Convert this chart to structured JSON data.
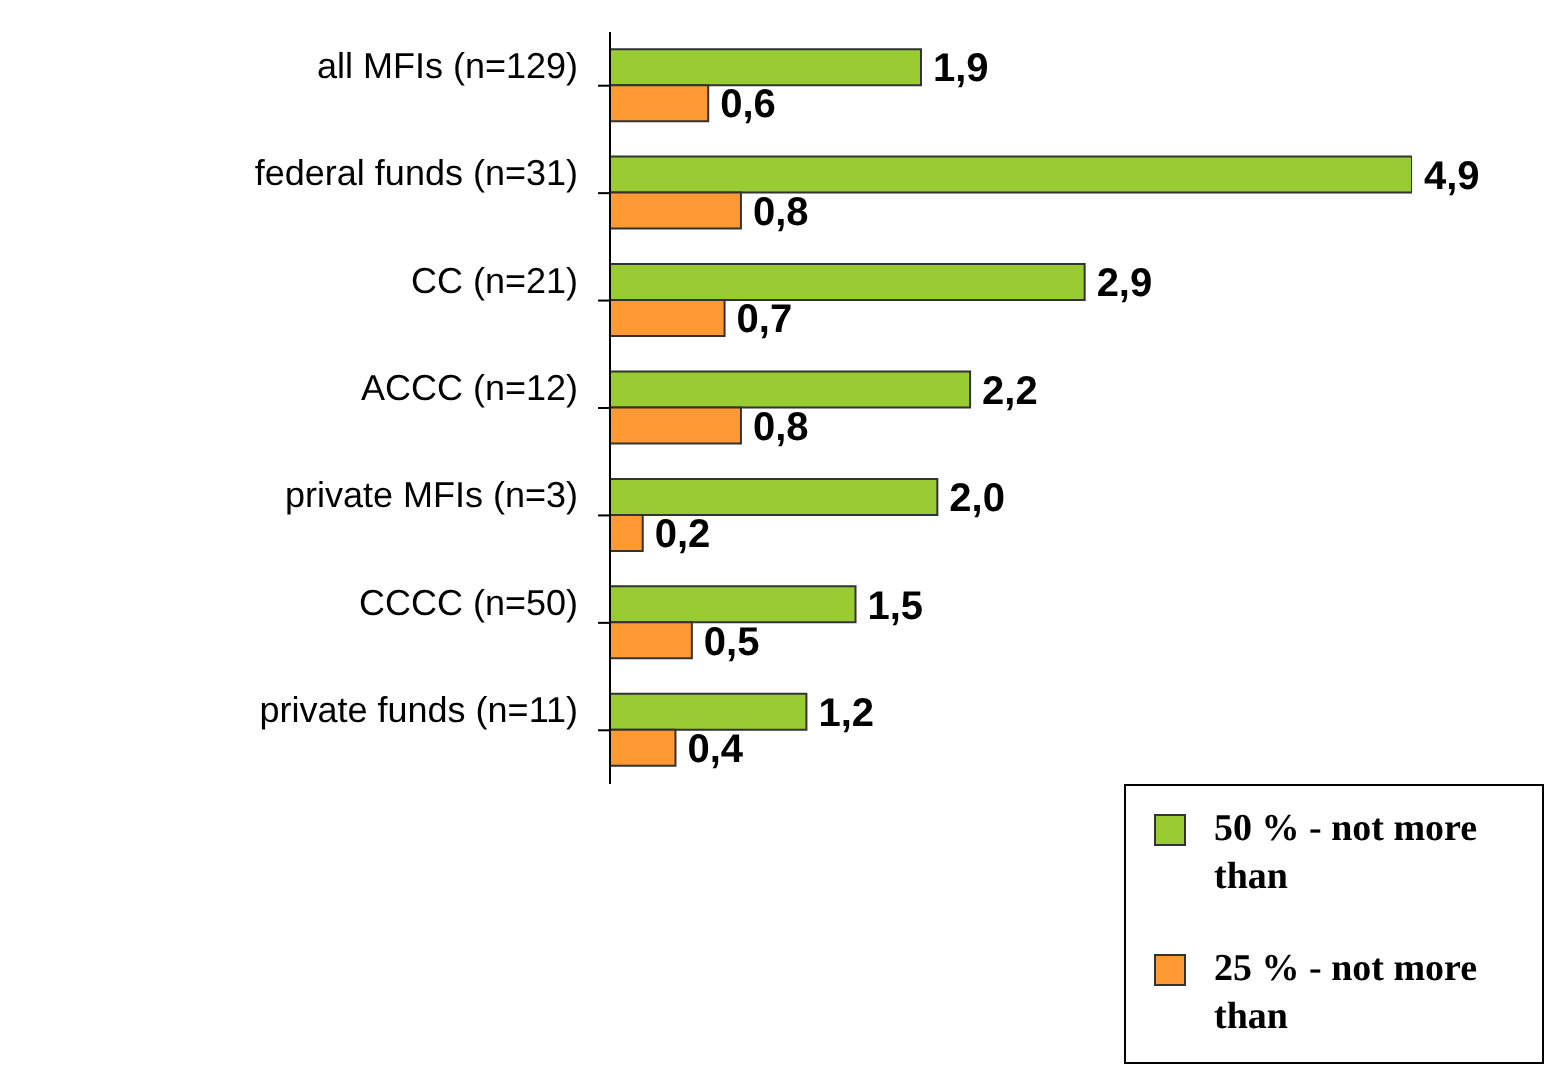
{
  "chart_data": {
    "type": "bar",
    "orientation": "horizontal",
    "categories": [
      "all MFIs (n=129)",
      "federal funds (n=31)",
      "CC (n=21)",
      "ACCC (n=12)",
      "private MFIs (n=3)",
      "CCCC (n=50)",
      "private funds (n=11)"
    ],
    "series": [
      {
        "name": "50 % - not more than",
        "color": "#99cc33",
        "values": [
          1.9,
          4.9,
          2.9,
          2.2,
          2.0,
          1.5,
          1.2
        ],
        "value_labels": [
          "1,9",
          "4,9",
          "2,9",
          "2,2",
          "2,0",
          "1,5",
          "1,2"
        ]
      },
      {
        "name": "25 % - not more than",
        "color": "#ff9933",
        "values": [
          0.6,
          0.8,
          0.7,
          0.8,
          0.2,
          0.5,
          0.4
        ],
        "value_labels": [
          "0,6",
          "0,8",
          "0,7",
          "0,8",
          "0,2",
          "0,5",
          "0,4"
        ]
      }
    ],
    "legend": "bottom right",
    "grid": false
  }
}
